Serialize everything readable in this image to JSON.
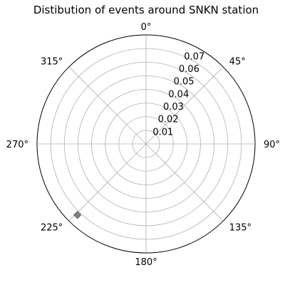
{
  "chart_data": {
    "type": "scatter",
    "projection": "polar",
    "title": "Distibution of events around SNKN station",
    "theta_direction": "clockwise",
    "theta_zero": "top",
    "theta_ticks": [
      0,
      45,
      90,
      135,
      180,
      225,
      270,
      315
    ],
    "theta_tick_labels": [
      "0°",
      "45°",
      "90°",
      "135°",
      "180°",
      "225°",
      "270°",
      "315°"
    ],
    "r_ticks": [
      0.01,
      0.02,
      0.03,
      0.04,
      0.05,
      0.06,
      0.07
    ],
    "r_tick_labels": [
      "0.01",
      "0.02",
      "0.03",
      "0.04",
      "0.05",
      "0.06",
      "0.07"
    ],
    "rlim": [
      0,
      0.08
    ],
    "grid": true,
    "points": [
      {
        "theta_deg": 224,
        "r": 0.0725
      }
    ],
    "marker": "diamond",
    "marker_color": "#808080",
    "marker_edge_color": "#555555"
  }
}
